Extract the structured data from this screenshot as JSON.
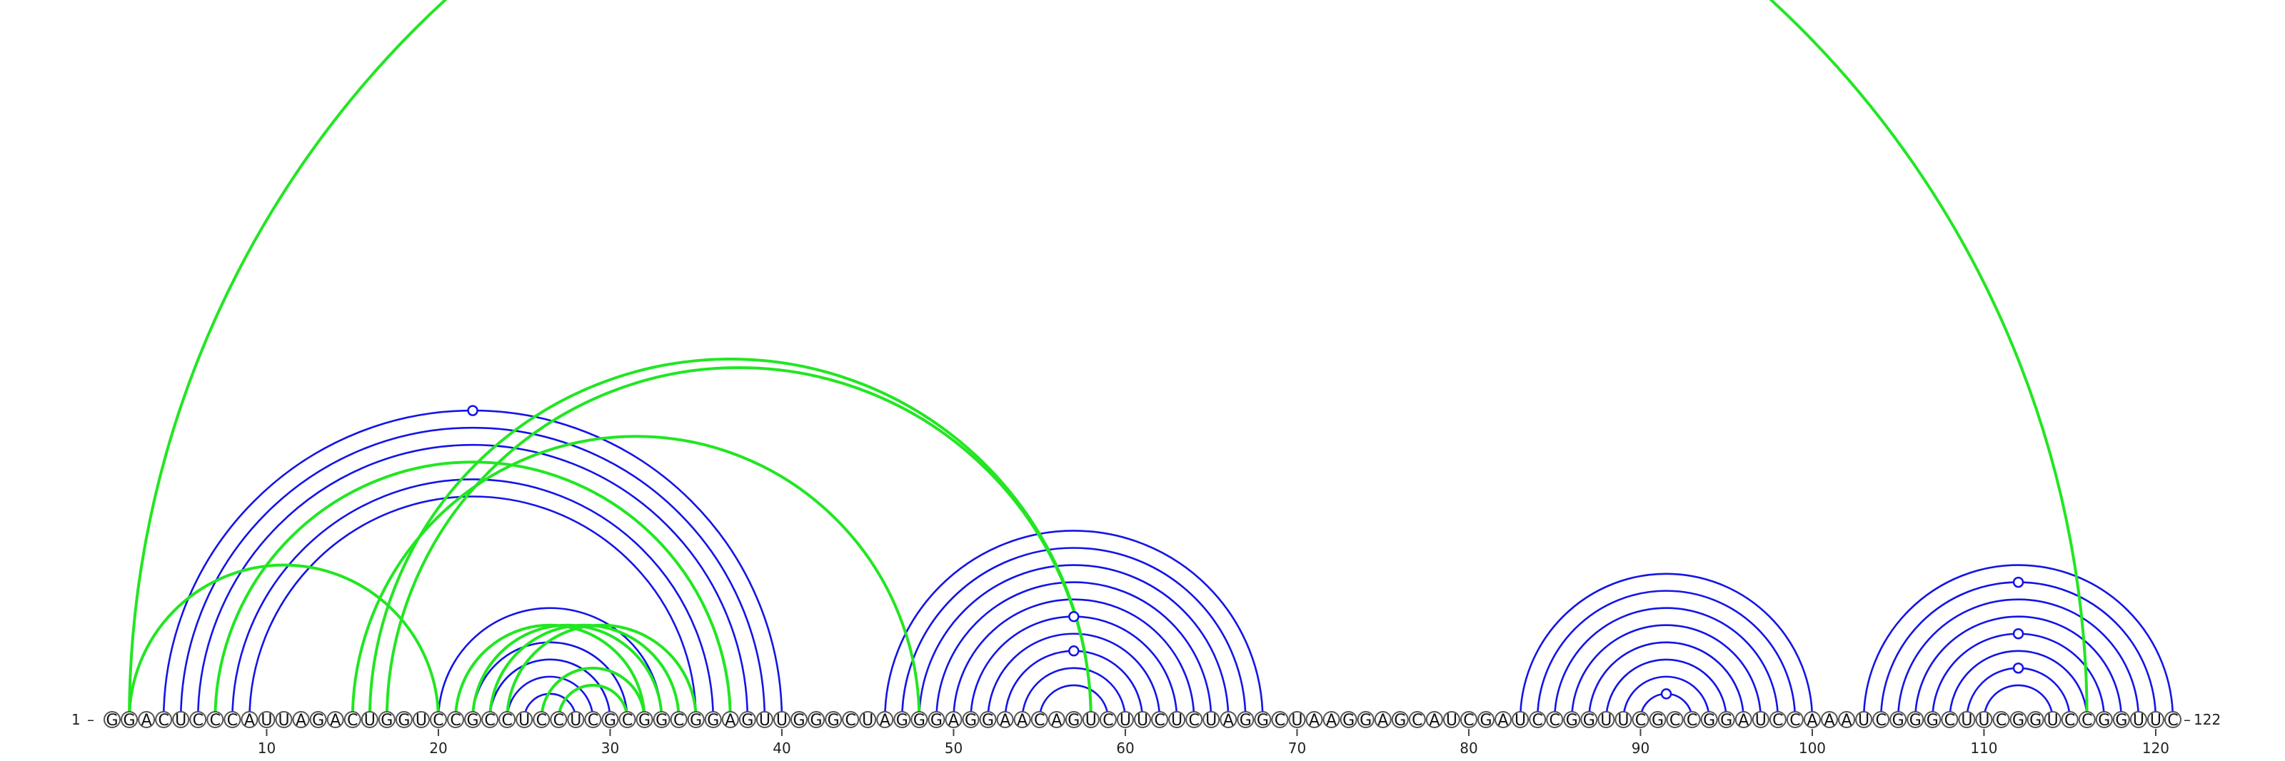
{
  "sequence": "GGACUCCCAUUAGACUGGUCCGCCUCCUCGCGGCGGAGUUGGGCUAGGGAGGAACAGUCUUCUCUAGGCUAAGGAGCAUCGAUCCGGUUCGCCGGAUCCAAAUCGGGCUUCGGUCCGGUUC",
  "start_label": "1",
  "end_label": "122",
  "ticks": [
    "10",
    "20",
    "30",
    "40",
    "50",
    "60",
    "70",
    "80",
    "90",
    "100",
    "110",
    "120"
  ],
  "colors": {
    "blue": "#1414e6",
    "green": "#22e622"
  },
  "arcs": {
    "blue": [
      [
        4,
        40
      ],
      [
        5,
        39
      ],
      [
        6,
        38
      ],
      [
        7,
        37
      ],
      [
        8,
        36
      ],
      [
        9,
        35
      ],
      [
        20,
        33
      ],
      [
        21,
        32
      ],
      [
        22,
        31
      ],
      [
        23,
        30
      ],
      [
        24,
        29
      ],
      [
        25,
        28
      ],
      [
        46,
        68
      ],
      [
        47,
        67
      ],
      [
        48,
        66
      ],
      [
        49,
        65
      ],
      [
        50,
        64
      ],
      [
        51,
        63
      ],
      [
        52,
        62
      ],
      [
        53,
        61
      ],
      [
        54,
        60
      ],
      [
        55,
        59
      ],
      [
        83,
        100
      ],
      [
        84,
        99
      ],
      [
        85,
        98
      ],
      [
        86,
        97
      ],
      [
        87,
        96
      ],
      [
        88,
        95
      ],
      [
        89,
        94
      ],
      [
        90,
        93
      ],
      [
        103,
        121
      ],
      [
        104,
        120
      ],
      [
        105,
        119
      ],
      [
        106,
        118
      ],
      [
        107,
        117
      ],
      [
        108,
        116
      ],
      [
        109,
        115
      ],
      [
        110,
        114
      ]
    ],
    "green": [
      [
        2,
        116
      ],
      [
        2,
        20
      ],
      [
        7,
        37
      ],
      [
        15,
        48
      ],
      [
        16,
        58
      ],
      [
        17,
        58
      ],
      [
        21,
        32
      ],
      [
        22,
        33
      ],
      [
        23,
        34
      ],
      [
        24,
        35
      ],
      [
        26,
        32
      ],
      [
        27,
        31
      ]
    ]
  },
  "markers": [
    {
      "l": 4,
      "r": 40
    },
    {
      "l": 51,
      "r": 63
    },
    {
      "l": 53,
      "r": 61
    },
    {
      "l": 90,
      "r": 93
    },
    {
      "l": 104,
      "r": 120
    },
    {
      "l": 107,
      "r": 117
    },
    {
      "l": 109,
      "r": 115
    }
  ]
}
